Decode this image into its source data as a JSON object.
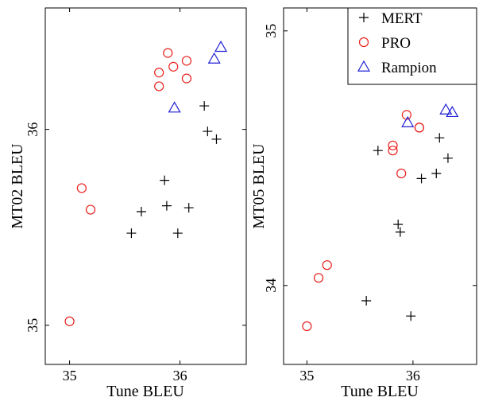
{
  "chart_data": [
    {
      "type": "scatter",
      "xlabel": "Tune BLEU",
      "ylabel": "MT02 BLEU",
      "xlim": [
        34.78,
        36.6
      ],
      "ylim": [
        34.8,
        36.62
      ],
      "xticks": [
        35,
        36
      ],
      "yticks": [
        35,
        36
      ],
      "series": [
        {
          "name": "MERT",
          "marker": "plus",
          "color": "#000000",
          "points": [
            [
              35.56,
              35.47
            ],
            [
              35.65,
              35.58
            ],
            [
              35.86,
              35.74
            ],
            [
              35.88,
              35.61
            ],
            [
              35.98,
              35.47
            ],
            [
              36.08,
              35.6
            ],
            [
              36.22,
              36.12
            ],
            [
              36.25,
              35.99
            ],
            [
              36.33,
              35.95
            ]
          ]
        },
        {
          "name": "PRO",
          "marker": "circle",
          "color": "#e8201c",
          "points": [
            [
              35.0,
              35.02
            ],
            [
              35.11,
              35.7
            ],
            [
              35.19,
              35.59
            ],
            [
              35.81,
              36.29
            ],
            [
              35.81,
              36.22
            ],
            [
              35.89,
              36.39
            ],
            [
              35.94,
              36.32
            ],
            [
              36.06,
              36.35
            ],
            [
              36.06,
              36.26
            ]
          ]
        },
        {
          "name": "Rampion",
          "marker": "triangle",
          "color": "#1f1fd6",
          "points": [
            [
              35.95,
              36.11
            ],
            [
              36.31,
              36.36
            ],
            [
              36.37,
              36.42
            ]
          ]
        }
      ]
    },
    {
      "type": "scatter",
      "xlabel": "Tune BLEU",
      "ylabel": "MT05 BLEU",
      "xlim": [
        34.78,
        36.6
      ],
      "ylim": [
        33.69,
        35.09
      ],
      "xticks": [
        35,
        36
      ],
      "yticks": [
        34,
        35
      ],
      "legend": {
        "position": "top-right",
        "entries": [
          "MERT",
          "PRO",
          "Rampion"
        ]
      },
      "series": [
        {
          "name": "MERT",
          "marker": "plus",
          "color": "#000000",
          "points": [
            [
              35.56,
              33.94
            ],
            [
              35.67,
              34.53
            ],
            [
              35.86,
              34.24
            ],
            [
              35.88,
              34.21
            ],
            [
              35.98,
              33.88
            ],
            [
              36.08,
              34.42
            ],
            [
              36.22,
              34.44
            ],
            [
              36.25,
              34.58
            ],
            [
              36.33,
              34.5
            ]
          ]
        },
        {
          "name": "PRO",
          "marker": "circle",
          "color": "#e8201c",
          "points": [
            [
              35.0,
              33.84
            ],
            [
              35.11,
              34.03
            ],
            [
              35.19,
              34.08
            ],
            [
              35.81,
              34.53
            ],
            [
              35.81,
              34.55
            ],
            [
              35.89,
              34.44
            ],
            [
              35.94,
              34.67
            ],
            [
              36.06,
              34.62
            ],
            [
              36.06,
              34.62
            ]
          ]
        },
        {
          "name": "Rampion",
          "marker": "triangle",
          "color": "#1f1fd6",
          "points": [
            [
              35.95,
              34.64
            ],
            [
              36.31,
              34.69
            ],
            [
              36.37,
              34.68
            ]
          ]
        }
      ]
    }
  ]
}
